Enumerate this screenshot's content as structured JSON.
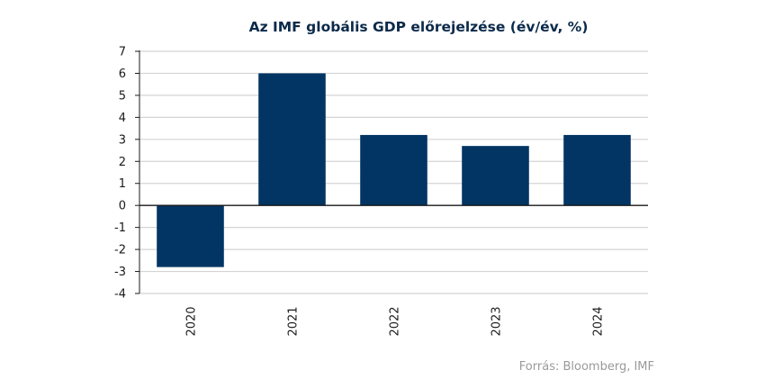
{
  "chart_data": {
    "type": "bar",
    "title": "Az IMF globális GDP előrejelzése (év/év, %)",
    "xlabel": "",
    "ylabel": "",
    "categories": [
      "2020",
      "2021",
      "2022",
      "2023",
      "2024"
    ],
    "values": [
      -2.8,
      6.0,
      3.2,
      2.7,
      3.2
    ],
    "ylim": [
      -4,
      7
    ],
    "yticks": [
      7,
      6,
      5,
      4,
      3,
      2,
      1,
      0,
      -1,
      -2,
      -3,
      -4
    ],
    "ytick_labels": [
      "7",
      "6",
      "5",
      "4",
      "3",
      "2",
      "1",
      "0",
      "-1",
      "-2",
      "-3",
      "-4"
    ],
    "grid": true,
    "x_tick_rotation": "vertical",
    "legend": "none",
    "source_note": "Forrás: Bloomberg, IMF",
    "colors": {
      "bar": "#023563",
      "grid": "#d4d4d4",
      "axis": "#1a1a1a",
      "title": "#0b2a4a",
      "source": "#9a9a9a"
    }
  }
}
